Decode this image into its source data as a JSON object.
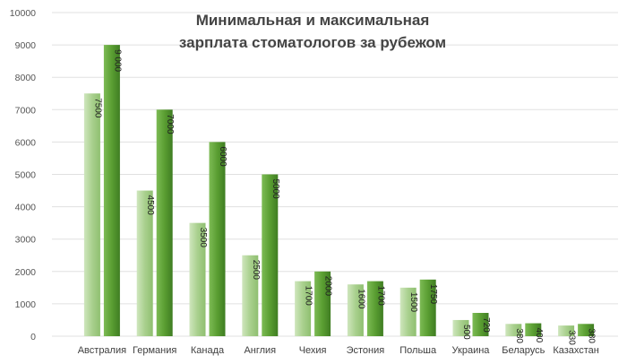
{
  "chart_data": {
    "type": "bar",
    "title_lines": [
      "Минимальная  и максимальная",
      "зарплата  стоматологов  за рубежом"
    ],
    "categories": [
      "Австралия",
      "Германия",
      "Канада",
      "Англия",
      "Чехия",
      "Эстония",
      "Польша",
      "Украина",
      "Беларусь",
      "Казахстан"
    ],
    "series": [
      {
        "values": [
          7500,
          4500,
          3500,
          2500,
          1700,
          1600,
          1500,
          500,
          380,
          330
        ],
        "labels": [
          "7500",
          "4500",
          "3500",
          "2500",
          "1700",
          "1600",
          "1500",
          "500",
          "380",
          "330"
        ],
        "color": "#a9d08e"
      },
      {
        "values": [
          9000,
          7000,
          6000,
          5000,
          2000,
          1700,
          1750,
          720,
          400,
          380
        ],
        "labels": [
          "9 000",
          "7000",
          "6000",
          "5000",
          "2000",
          "1700",
          "1750",
          "720",
          "400",
          "380"
        ],
        "color": "#5a9e32"
      }
    ],
    "ylim": [
      0,
      10000
    ],
    "yticks": [
      "0",
      "1000",
      "2000",
      "3000",
      "4000",
      "5000",
      "6000",
      "7000",
      "8000",
      "9000",
      "10000"
    ],
    "grid": true,
    "legend": "none"
  }
}
